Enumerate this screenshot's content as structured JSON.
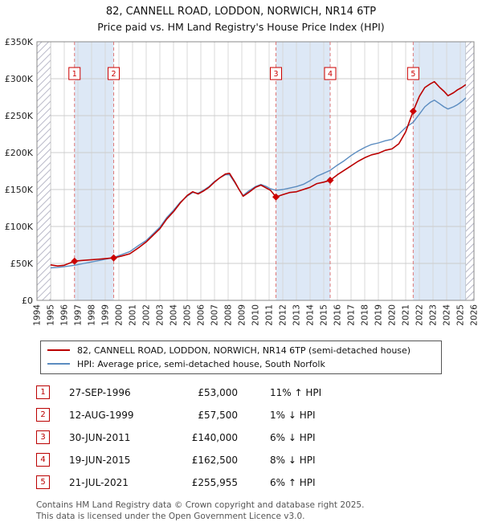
{
  "page": {
    "title": "82, CANNELL ROAD, LODDON, NORWICH, NR14 6TP",
    "subtitle": "Price paid vs. HM Land Registry's House Price Index (HPI)"
  },
  "legend": [
    {
      "label": "82, CANNELL ROAD, LODDON, NORWICH, NR14 6TP (semi-detached house)",
      "color": "#bb0000"
    },
    {
      "label": "HPI: Average price, semi-detached house, South Norfolk",
      "color": "#5b8cc0"
    }
  ],
  "sales": [
    {
      "num": "1",
      "date": "27-SEP-1996",
      "price": "£53,000",
      "hpi": "11% ↑ HPI"
    },
    {
      "num": "2",
      "date": "12-AUG-1999",
      "price": "£57,500",
      "hpi": "1% ↓ HPI"
    },
    {
      "num": "3",
      "date": "30-JUN-2011",
      "price": "£140,000",
      "hpi": "6% ↓ HPI"
    },
    {
      "num": "4",
      "date": "19-JUN-2015",
      "price": "£162,500",
      "hpi": "8% ↓ HPI"
    },
    {
      "num": "5",
      "date": "21-JUL-2021",
      "price": "£255,955",
      "hpi": "6% ↑ HPI"
    }
  ],
  "footer": {
    "line1": "Contains HM Land Registry data © Crown copyright and database right 2025.",
    "line2": "This data is licensed under the Open Government Licence v3.0."
  },
  "chart_data": {
    "type": "line",
    "title": "Price paid vs. HM Land Registry's House Price Index (HPI)",
    "x_range": [
      1994,
      2026
    ],
    "y_range": [
      0,
      350000
    ],
    "grid": true,
    "legend_position": "bottom",
    "label_y": 307000,
    "colors": {
      "band": "#dde8f6",
      "sale_line": "#dd7777",
      "grid_v": "#d8d8d8",
      "grid_h": "#cccccc",
      "marker": "#cc0000",
      "frame": "#888888",
      "hatch": "#b8b8c8"
    },
    "x_ticks": [
      1994,
      1995,
      1996,
      1997,
      1998,
      1999,
      2000,
      2001,
      2002,
      2003,
      2004,
      2005,
      2006,
      2007,
      2008,
      2009,
      2010,
      2011,
      2012,
      2013,
      2014,
      2015,
      2016,
      2017,
      2018,
      2019,
      2020,
      2021,
      2022,
      2023,
      2024,
      2025,
      2026
    ],
    "y_ticks": [
      {
        "v": 0,
        "label": "£0"
      },
      {
        "v": 50000,
        "label": "£50K"
      },
      {
        "v": 100000,
        "label": "£100K"
      },
      {
        "v": 150000,
        "label": "£150K"
      },
      {
        "v": 200000,
        "label": "£200K"
      },
      {
        "v": 250000,
        "label": "£250K"
      },
      {
        "v": 300000,
        "label": "£300K"
      },
      {
        "v": 350000,
        "label": "£350K"
      }
    ],
    "bands": [
      [
        1996.75,
        1999.62
      ],
      [
        2011.5,
        2015.47
      ],
      [
        2021.55,
        2025.4
      ]
    ],
    "hatch_regions": [
      [
        1994,
        1995.0
      ],
      [
        2025.4,
        2026
      ]
    ],
    "sale_events": [
      {
        "n": "1",
        "x": 1996.75,
        "price": 53000
      },
      {
        "n": "2",
        "x": 1999.62,
        "price": 57500
      },
      {
        "n": "3",
        "x": 2011.5,
        "price": 140000
      },
      {
        "n": "4",
        "x": 2015.47,
        "price": 162500
      },
      {
        "n": "5",
        "x": 2021.55,
        "price": 255955
      }
    ],
    "series": [
      {
        "name": "HPI: Average price, semi-detached house, South Norfolk",
        "color": "#5b8cc0",
        "width": 1.4,
        "points": [
          [
            1995.0,
            44000
          ],
          [
            1995.5,
            44500
          ],
          [
            1996.0,
            45500
          ],
          [
            1996.75,
            47500
          ],
          [
            1997.3,
            49500
          ],
          [
            1998.0,
            52000
          ],
          [
            1998.7,
            54500
          ],
          [
            1999.62,
            58000
          ],
          [
            2000.2,
            62000
          ],
          [
            2000.8,
            66000
          ],
          [
            2001.5,
            75000
          ],
          [
            2002.0,
            81000
          ],
          [
            2002.5,
            90000
          ],
          [
            2003.0,
            99000
          ],
          [
            2003.5,
            112000
          ],
          [
            2004.0,
            122000
          ],
          [
            2004.5,
            133000
          ],
          [
            2005.0,
            141000
          ],
          [
            2005.4,
            146000
          ],
          [
            2005.8,
            145000
          ],
          [
            2006.2,
            149000
          ],
          [
            2006.6,
            154000
          ],
          [
            2007.0,
            161000
          ],
          [
            2007.4,
            166000
          ],
          [
            2007.8,
            170000
          ],
          [
            2008.1,
            170000
          ],
          [
            2008.5,
            159000
          ],
          [
            2008.8,
            150000
          ],
          [
            2009.1,
            142000
          ],
          [
            2009.5,
            148000
          ],
          [
            2010.0,
            154000
          ],
          [
            2010.4,
            157000
          ],
          [
            2010.8,
            154000
          ],
          [
            2011.1,
            151000
          ],
          [
            2011.5,
            149000
          ],
          [
            2012.0,
            150000
          ],
          [
            2012.5,
            152000
          ],
          [
            2013.0,
            154000
          ],
          [
            2013.5,
            157000
          ],
          [
            2014.0,
            162000
          ],
          [
            2014.5,
            168000
          ],
          [
            2015.0,
            172000
          ],
          [
            2015.47,
            176000
          ],
          [
            2016.0,
            183000
          ],
          [
            2016.5,
            189000
          ],
          [
            2017.0,
            196000
          ],
          [
            2017.5,
            202000
          ],
          [
            2018.0,
            207000
          ],
          [
            2018.5,
            211000
          ],
          [
            2019.0,
            213000
          ],
          [
            2019.5,
            216000
          ],
          [
            2020.0,
            218000
          ],
          [
            2020.5,
            225000
          ],
          [
            2021.0,
            234000
          ],
          [
            2021.55,
            241000
          ],
          [
            2022.0,
            252000
          ],
          [
            2022.4,
            262000
          ],
          [
            2022.8,
            268000
          ],
          [
            2023.1,
            271000
          ],
          [
            2023.5,
            266000
          ],
          [
            2023.8,
            262000
          ],
          [
            2024.1,
            259000
          ],
          [
            2024.5,
            262000
          ],
          [
            2024.8,
            265000
          ],
          [
            2025.1,
            269000
          ],
          [
            2025.4,
            274000
          ]
        ]
      },
      {
        "name": "82, CANNELL ROAD, LODDON, NORWICH, NR14 6TP (semi-detached house)",
        "color": "#bb0000",
        "width": 1.6,
        "points": [
          [
            1995.0,
            48000
          ],
          [
            1995.5,
            46500
          ],
          [
            1996.0,
            47500
          ],
          [
            1996.75,
            53000
          ],
          [
            1997.3,
            54000
          ],
          [
            1998.0,
            55000
          ],
          [
            1998.7,
            56000
          ],
          [
            1999.62,
            57500
          ],
          [
            2000.2,
            60000
          ],
          [
            2000.8,
            63000
          ],
          [
            2001.5,
            72000
          ],
          [
            2002.0,
            79000
          ],
          [
            2002.5,
            88000
          ],
          [
            2003.0,
            97000
          ],
          [
            2003.5,
            110000
          ],
          [
            2004.0,
            120000
          ],
          [
            2004.5,
            132000
          ],
          [
            2005.0,
            142000
          ],
          [
            2005.4,
            147000
          ],
          [
            2005.8,
            144000
          ],
          [
            2006.2,
            148000
          ],
          [
            2006.6,
            153000
          ],
          [
            2007.0,
            160000
          ],
          [
            2007.4,
            166000
          ],
          [
            2007.8,
            171000
          ],
          [
            2008.1,
            172000
          ],
          [
            2008.5,
            160000
          ],
          [
            2008.8,
            150000
          ],
          [
            2009.1,
            141000
          ],
          [
            2009.5,
            146000
          ],
          [
            2010.0,
            153000
          ],
          [
            2010.4,
            156000
          ],
          [
            2010.8,
            152000
          ],
          [
            2011.1,
            149000
          ],
          [
            2011.5,
            140000
          ],
          [
            2012.0,
            143000
          ],
          [
            2012.5,
            146000
          ],
          [
            2013.0,
            147000
          ],
          [
            2013.5,
            150000
          ],
          [
            2014.0,
            153000
          ],
          [
            2014.5,
            158000
          ],
          [
            2015.0,
            160000
          ],
          [
            2015.47,
            162500
          ],
          [
            2016.0,
            170000
          ],
          [
            2016.5,
            176000
          ],
          [
            2017.0,
            182000
          ],
          [
            2017.5,
            188000
          ],
          [
            2018.0,
            193000
          ],
          [
            2018.5,
            197000
          ],
          [
            2019.0,
            199000
          ],
          [
            2019.5,
            203000
          ],
          [
            2020.0,
            205000
          ],
          [
            2020.5,
            212000
          ],
          [
            2021.0,
            228000
          ],
          [
            2021.55,
            255955
          ],
          [
            2022.0,
            276000
          ],
          [
            2022.4,
            288000
          ],
          [
            2022.8,
            293000
          ],
          [
            2023.1,
            296000
          ],
          [
            2023.5,
            288000
          ],
          [
            2023.8,
            283000
          ],
          [
            2024.1,
            277000
          ],
          [
            2024.5,
            281000
          ],
          [
            2024.8,
            285000
          ],
          [
            2025.1,
            288000
          ],
          [
            2025.4,
            292000
          ]
        ]
      }
    ]
  }
}
